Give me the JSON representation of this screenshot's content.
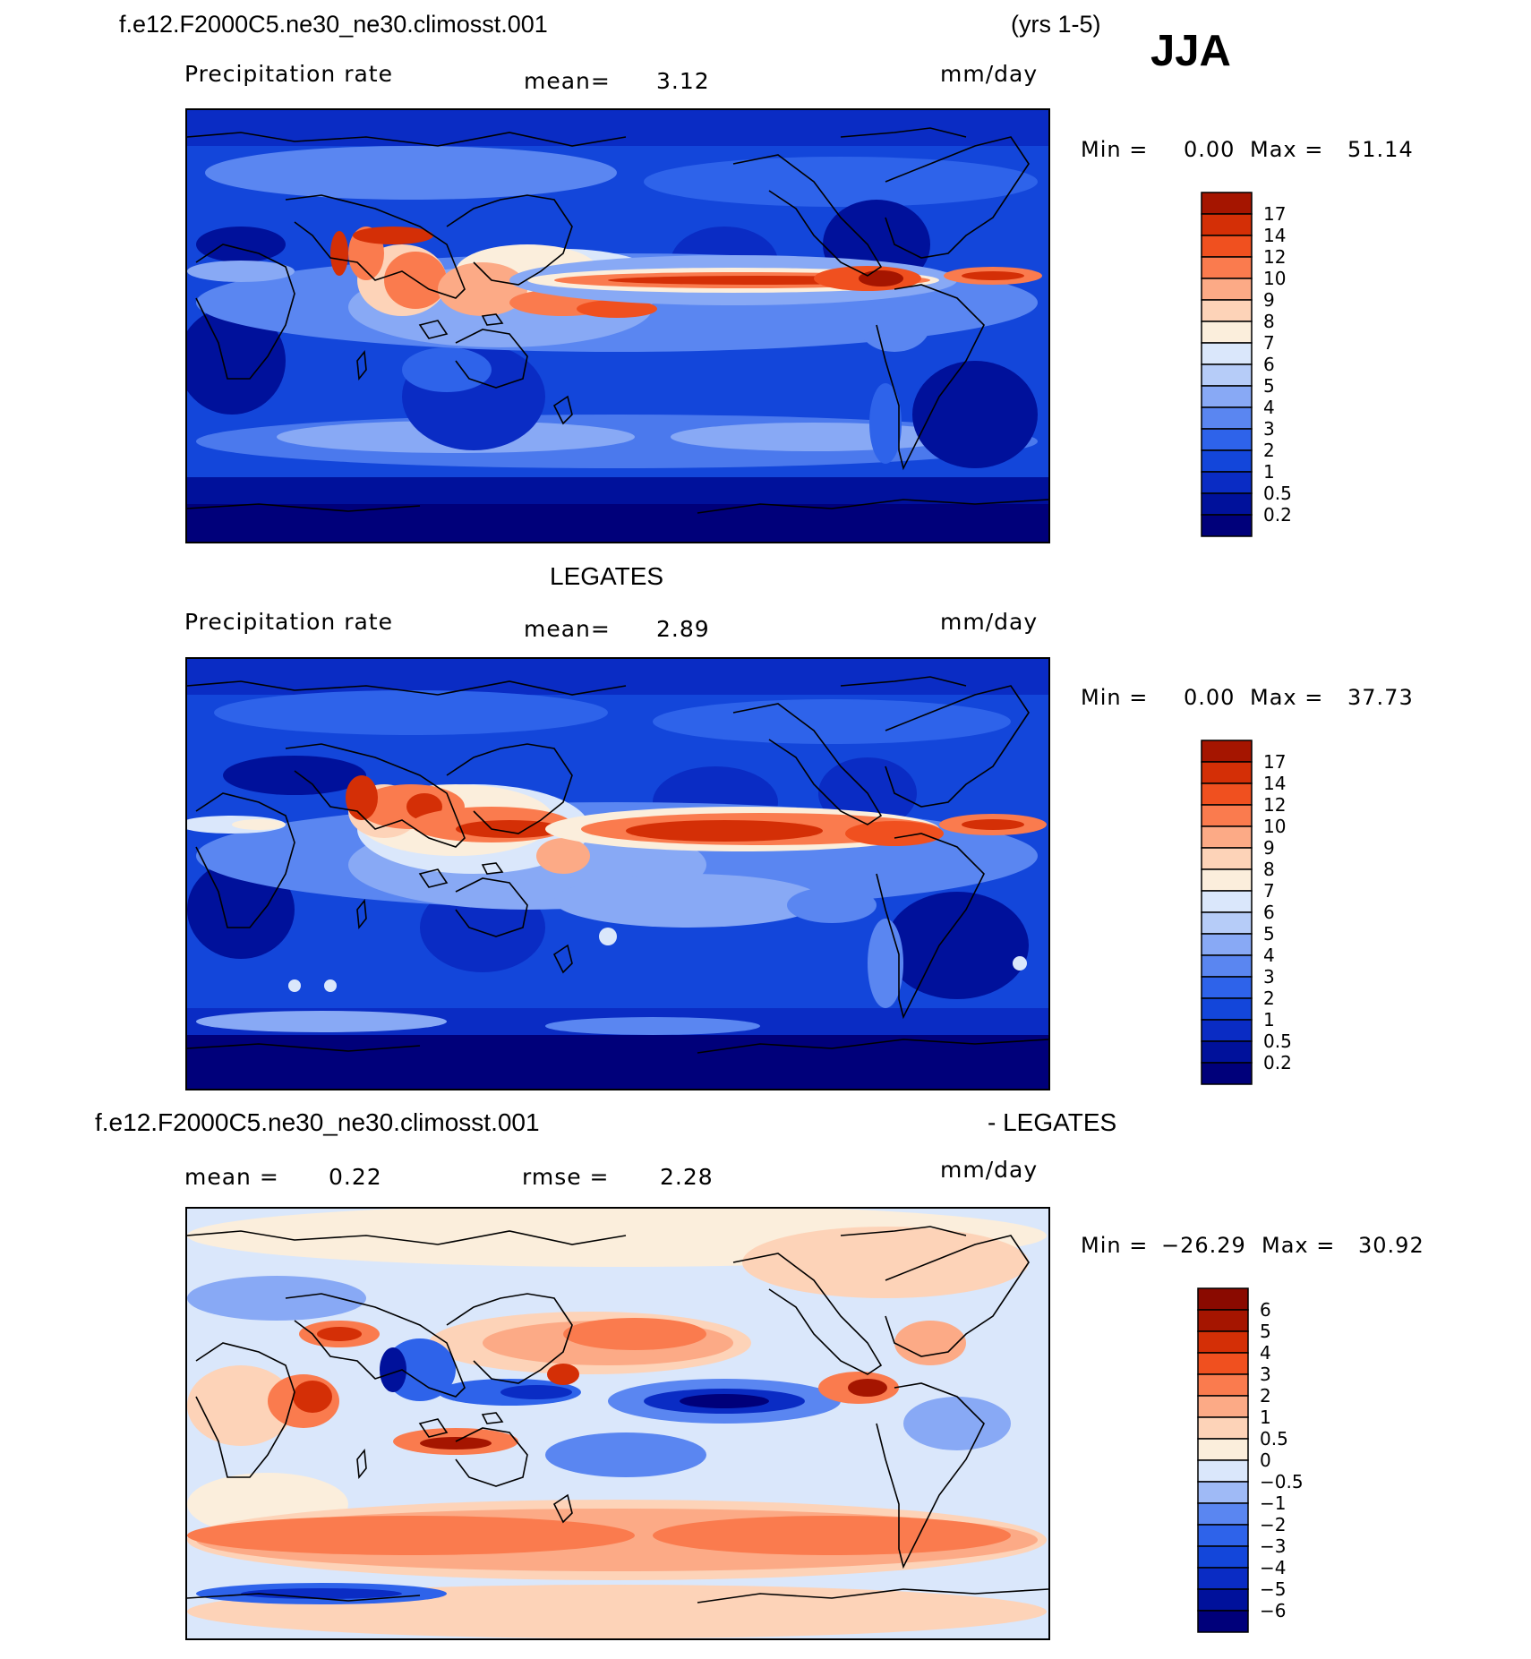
{
  "header": {
    "case_title": "f.e12.F2000C5.ne30_ne30.climosst.001",
    "years": "(yrs 1-5)",
    "season": "JJA"
  },
  "chart_data": [
    {
      "type": "heatmap",
      "title": "f.e12.F2000C5.ne30_ne30.climosst.001",
      "variable": "Precipitation rate",
      "mean_label": "mean=",
      "mean_value": "3.12",
      "units": "mm/day",
      "min_label": "Min =",
      "min_value": "0.00",
      "max_label": "Max =",
      "max_value": "51.14",
      "levels": [
        "0.2",
        "0.5",
        "1",
        "2",
        "3",
        "4",
        "5",
        "6",
        "7",
        "8",
        "9",
        "10",
        "12",
        "14",
        "17"
      ],
      "colors": [
        "#00007a",
        "#00119b",
        "#0a2cc4",
        "#1346da",
        "#2e63ea",
        "#5a86f1",
        "#88a9f5",
        "#b6ccf8",
        "#dae7fb",
        "#fbeedc",
        "#fdd3b8",
        "#fcaa86",
        "#fa7b4e",
        "#f0501f",
        "#d42f06",
        "#a51500"
      ]
    },
    {
      "type": "heatmap",
      "title": "LEGATES",
      "variable": "Precipitation rate",
      "mean_label": "mean=",
      "mean_value": "2.89",
      "units": "mm/day",
      "min_label": "Min =",
      "min_value": "0.00",
      "max_label": "Max =",
      "max_value": "37.73",
      "levels": [
        "0.2",
        "0.5",
        "1",
        "2",
        "3",
        "4",
        "5",
        "6",
        "7",
        "8",
        "9",
        "10",
        "12",
        "14",
        "17"
      ],
      "colors": [
        "#00007a",
        "#00119b",
        "#0a2cc4",
        "#1346da",
        "#2e63ea",
        "#5a86f1",
        "#88a9f5",
        "#b6ccf8",
        "#dae7fb",
        "#fbeedc",
        "#fdd3b8",
        "#fcaa86",
        "#fa7b4e",
        "#f0501f",
        "#d42f06",
        "#a51500"
      ]
    },
    {
      "type": "heatmap",
      "title": "f.e12.F2000C5.ne30_ne30.climosst.001",
      "title_suffix": "- LEGATES",
      "mean_label": "mean =",
      "mean_value": "0.22",
      "rmse_label": "rmse =",
      "rmse_value": "2.28",
      "units": "mm/day",
      "min_label": "Min =",
      "min_value": "−26.29",
      "max_label": "Max =",
      "max_value": "30.92",
      "levels": [
        "−6",
        "−5",
        "−4",
        "−3",
        "−2",
        "−1",
        "−0.5",
        "0",
        "0.5",
        "1",
        "2",
        "3",
        "4",
        "5",
        "6"
      ],
      "colors": [
        "#00007a",
        "#00119b",
        "#0a2cc4",
        "#1346da",
        "#2e63ea",
        "#5a86f1",
        "#9fbaf6",
        "#dae7fb",
        "#fbeedc",
        "#fdd3b8",
        "#fcaa86",
        "#fa7b4e",
        "#f0501f",
        "#d42f06",
        "#a51500",
        "#8a0a00"
      ]
    }
  ]
}
